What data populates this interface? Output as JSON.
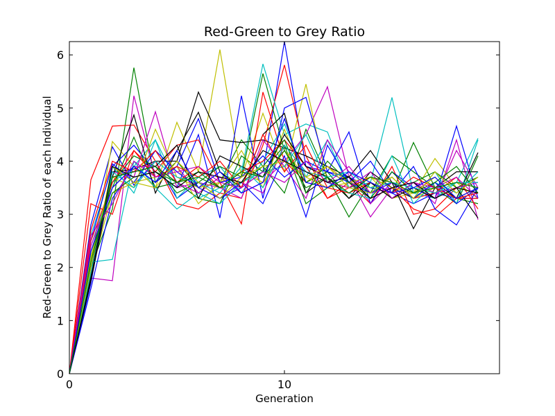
{
  "chart_data": {
    "type": "line",
    "title": "Red-Green to Grey Ratio",
    "xlabel": "Generation",
    "ylabel": "Red-Green to Grey Ratio of each Individual",
    "xlim": [
      0,
      20
    ],
    "ylim": [
      0,
      6.25
    ],
    "xticks": [
      0,
      10
    ],
    "yticks": [
      0,
      1,
      2,
      3,
      4,
      5,
      6
    ],
    "xtick_labels": [
      "0",
      "10"
    ],
    "ytick_labels": [
      "0",
      "1",
      "2",
      "3",
      "4",
      "5",
      "6"
    ],
    "grid": false,
    "legend": "none",
    "x": [
      0,
      1,
      2,
      3,
      4,
      5,
      6,
      7,
      8,
      9,
      10,
      11,
      12,
      13,
      14,
      15,
      16,
      17,
      18,
      19
    ],
    "series": [
      {
        "name": "s1",
        "color": "#0000ff",
        "values": [
          0,
          2.8,
          4.27,
          3.55,
          4.0,
          3.3,
          3.6,
          3.3,
          3.5,
          3.8,
          6.25,
          3.9,
          3.8,
          3.7,
          3.5,
          3.4,
          3.2,
          3.4,
          3.3,
          3.3
        ]
      },
      {
        "name": "s2",
        "color": "#008000",
        "values": [
          0,
          2.0,
          3.1,
          5.76,
          3.6,
          4.0,
          3.5,
          3.6,
          4.4,
          3.9,
          3.4,
          4.6,
          3.7,
          2.95,
          3.6,
          3.4,
          4.35,
          3.5,
          3.3,
          3.2
        ]
      },
      {
        "name": "s3",
        "color": "#ff0000",
        "values": [
          0,
          3.65,
          4.66,
          4.68,
          4.0,
          3.2,
          3.1,
          3.4,
          3.3,
          4.3,
          5.81,
          4.1,
          3.3,
          3.6,
          3.2,
          3.9,
          3.0,
          3.1,
          3.5,
          3.4
        ]
      },
      {
        "name": "s4",
        "color": "#00bfbf",
        "values": [
          0,
          2.4,
          3.6,
          3.9,
          4.4,
          3.6,
          3.3,
          3.5,
          3.8,
          5.83,
          4.5,
          4.7,
          4.55,
          3.5,
          3.6,
          5.2,
          3.4,
          3.3,
          3.6,
          4.43
        ]
      },
      {
        "name": "s5",
        "color": "#bf00bf",
        "values": [
          0,
          1.8,
          1.75,
          5.23,
          3.7,
          3.9,
          3.4,
          3.7,
          3.4,
          3.6,
          4.0,
          4.5,
          5.4,
          3.7,
          2.95,
          3.5,
          3.6,
          3.2,
          4.4,
          2.9
        ]
      },
      {
        "name": "s6",
        "color": "#bfbf00",
        "values": [
          0,
          2.1,
          4.37,
          3.9,
          3.5,
          4.73,
          3.8,
          6.1,
          3.7,
          4.9,
          3.8,
          5.45,
          3.6,
          3.5,
          3.7,
          3.3,
          3.4,
          4.05,
          3.5,
          3.4
        ]
      },
      {
        "name": "s7",
        "color": "#000000",
        "values": [
          0,
          1.85,
          3.8,
          3.85,
          4.0,
          4.0,
          5.3,
          4.4,
          4.35,
          4.4,
          4.25,
          4.1,
          3.9,
          3.7,
          4.2,
          3.6,
          2.73,
          3.5,
          3.8,
          3.8
        ]
      },
      {
        "name": "s8",
        "color": "#0000ff",
        "values": [
          0,
          1.7,
          3.9,
          4.3,
          3.8,
          3.5,
          4.5,
          2.93,
          5.23,
          3.3,
          5.0,
          5.2,
          3.8,
          4.55,
          3.2,
          3.8,
          3.5,
          3.3,
          4.66,
          3.3
        ]
      },
      {
        "name": "s9",
        "color": "#008000",
        "values": [
          0,
          2.3,
          3.5,
          4.45,
          3.5,
          3.6,
          3.3,
          3.2,
          4.1,
          3.8,
          4.3,
          3.2,
          3.5,
          3.7,
          3.4,
          4.1,
          3.8,
          3.5,
          3.2,
          4.1
        ]
      },
      {
        "name": "s10",
        "color": "#ff0000",
        "values": [
          0,
          3.2,
          3.0,
          4.2,
          3.8,
          4.3,
          4.4,
          3.6,
          2.82,
          5.3,
          4.0,
          3.6,
          3.9,
          3.6,
          3.3,
          3.5,
          3.1,
          2.95,
          3.3,
          3.3
        ]
      },
      {
        "name": "s11",
        "color": "#00bfbf",
        "values": [
          0,
          2.6,
          3.9,
          3.4,
          4.4,
          3.3,
          3.7,
          3.9,
          3.4,
          4.0,
          4.7,
          3.7,
          4.4,
          3.5,
          3.4,
          3.7,
          3.3,
          3.8,
          3.2,
          4.4
        ]
      },
      {
        "name": "s12",
        "color": "#bf00bf",
        "values": [
          0,
          2.0,
          3.8,
          3.7,
          4.93,
          3.5,
          3.6,
          3.5,
          3.3,
          4.4,
          3.9,
          3.3,
          4.4,
          3.8,
          3.2,
          3.6,
          3.5,
          3.3,
          4.2,
          3.5
        ]
      },
      {
        "name": "s13",
        "color": "#bfbf00",
        "values": [
          0,
          1.9,
          3.4,
          3.6,
          3.7,
          3.9,
          3.2,
          3.6,
          4.2,
          3.5,
          4.6,
          3.6,
          3.9,
          3.6,
          3.5,
          3.7,
          3.3,
          3.5,
          3.6,
          3.3
        ]
      },
      {
        "name": "s14",
        "color": "#000000",
        "values": [
          0,
          1.75,
          3.7,
          4.87,
          3.4,
          4.2,
          4.92,
          3.8,
          3.5,
          4.5,
          4.9,
          3.4,
          3.7,
          3.3,
          3.8,
          3.5,
          3.3,
          3.6,
          3.3,
          4.16
        ]
      },
      {
        "name": "s15",
        "color": "#0000ff",
        "values": [
          0,
          2.5,
          3.95,
          3.6,
          4.2,
          3.8,
          3.5,
          3.3,
          3.6,
          3.2,
          4.1,
          2.95,
          4.3,
          3.6,
          4.0,
          3.4,
          3.9,
          3.1,
          2.8,
          3.5
        ]
      },
      {
        "name": "s16",
        "color": "#008000",
        "values": [
          0,
          2.2,
          3.6,
          4.1,
          3.9,
          3.4,
          3.6,
          3.9,
          3.7,
          5.65,
          4.2,
          3.6,
          3.8,
          3.3,
          3.6,
          3.3,
          3.6,
          3.8,
          3.5,
          3.7
        ]
      },
      {
        "name": "s17",
        "color": "#ff0000",
        "values": [
          0,
          2.7,
          4.0,
          3.8,
          4.2,
          3.6,
          3.9,
          3.5,
          3.8,
          4.0,
          4.4,
          3.9,
          3.3,
          3.5,
          3.7,
          3.6,
          3.3,
          3.4,
          3.7,
          3.1
        ]
      },
      {
        "name": "s18",
        "color": "#00bfbf",
        "values": [
          0,
          2.1,
          2.15,
          4.0,
          3.5,
          3.1,
          3.4,
          3.2,
          3.6,
          3.8,
          3.9,
          4.5,
          3.6,
          3.4,
          3.3,
          4.1,
          3.2,
          3.6,
          3.4,
          3.8
        ]
      },
      {
        "name": "s19",
        "color": "#bf00bf",
        "values": [
          0,
          2.4,
          3.5,
          3.9,
          3.9,
          3.6,
          3.4,
          3.7,
          3.6,
          3.4,
          4.3,
          3.8,
          3.6,
          3.9,
          3.4,
          3.5,
          3.6,
          3.4,
          3.5,
          3.6
        ]
      },
      {
        "name": "s20",
        "color": "#bfbf00",
        "values": [
          0,
          2.2,
          3.7,
          3.5,
          4.6,
          3.7,
          3.5,
          3.6,
          3.8,
          3.6,
          4.2,
          3.7,
          3.5,
          3.6,
          3.7,
          3.5,
          3.4,
          3.7,
          3.3,
          3.5
        ]
      },
      {
        "name": "s21",
        "color": "#000000",
        "values": [
          0,
          2.0,
          3.7,
          3.8,
          3.9,
          4.3,
          3.3,
          4.1,
          3.9,
          3.7,
          4.5,
          3.9,
          3.7,
          3.3,
          3.6,
          3.3,
          3.5,
          3.3,
          3.5,
          2.93
        ]
      },
      {
        "name": "s22",
        "color": "#0000ff",
        "values": [
          0,
          1.6,
          3.3,
          3.9,
          3.6,
          3.9,
          4.8,
          3.6,
          3.7,
          4.1,
          3.7,
          4.0,
          3.8,
          3.6,
          3.4,
          3.6,
          3.3,
          3.6,
          3.2,
          3.5
        ]
      },
      {
        "name": "s23",
        "color": "#008000",
        "values": [
          0,
          2.3,
          3.4,
          3.7,
          3.8,
          3.6,
          3.8,
          3.5,
          3.6,
          3.9,
          4.4,
          3.4,
          4.0,
          3.6,
          3.3,
          3.8,
          3.4,
          3.6,
          3.9,
          3.4
        ]
      },
      {
        "name": "s24",
        "color": "#ff0000",
        "values": [
          0,
          2.5,
          3.6,
          4.2,
          3.7,
          3.9,
          3.7,
          4.0,
          3.5,
          4.5,
          3.8,
          4.3,
          3.5,
          3.4,
          3.6,
          3.4,
          3.7,
          3.5,
          3.3,
          3.4
        ]
      },
      {
        "name": "s25",
        "color": "#00bfbf",
        "values": [
          0,
          1.9,
          3.8,
          3.5,
          4.0,
          3.7,
          3.6,
          3.4,
          3.9,
          3.5,
          4.3,
          3.8,
          3.7,
          3.8,
          3.5,
          3.6,
          3.5,
          3.4,
          3.6,
          3.6
        ]
      },
      {
        "name": "s26",
        "color": "#bf00bf",
        "values": [
          0,
          2.6,
          3.2,
          4.0,
          3.7,
          3.8,
          3.9,
          3.6,
          3.5,
          3.8,
          3.6,
          4.0,
          3.6,
          3.5,
          3.8,
          3.3,
          3.6,
          3.5,
          3.7,
          3.3
        ]
      },
      {
        "name": "s27",
        "color": "#bfbf00",
        "values": [
          0,
          2.0,
          3.9,
          3.6,
          3.5,
          4.0,
          3.6,
          3.3,
          3.7,
          3.9,
          4.0,
          3.7,
          3.9,
          3.5,
          3.4,
          3.7,
          3.3,
          3.8,
          3.4,
          3.7
        ]
      },
      {
        "name": "s28",
        "color": "#000000",
        "values": [
          0,
          1.8,
          3.9,
          3.7,
          3.8,
          3.5,
          3.8,
          3.7,
          3.6,
          4.2,
          4.0,
          3.8,
          3.6,
          3.7,
          3.3,
          3.5,
          3.6,
          3.3,
          3.5,
          3.4
        ]
      },
      {
        "name": "s29",
        "color": "#0000ff",
        "values": [
          0,
          2.3,
          3.5,
          3.9,
          3.6,
          4.2,
          3.5,
          3.8,
          3.4,
          3.6,
          4.8,
          3.6,
          3.5,
          3.8,
          3.6,
          3.4,
          3.5,
          3.7,
          3.3,
          3.5
        ]
      },
      {
        "name": "s30",
        "color": "#008000",
        "values": [
          0,
          2.1,
          3.7,
          3.8,
          3.9,
          3.6,
          3.7,
          3.5,
          3.8,
          3.7,
          4.2,
          3.5,
          3.7,
          3.4,
          3.7,
          3.6,
          3.4,
          3.5,
          3.6,
          3.5
        ]
      }
    ]
  }
}
